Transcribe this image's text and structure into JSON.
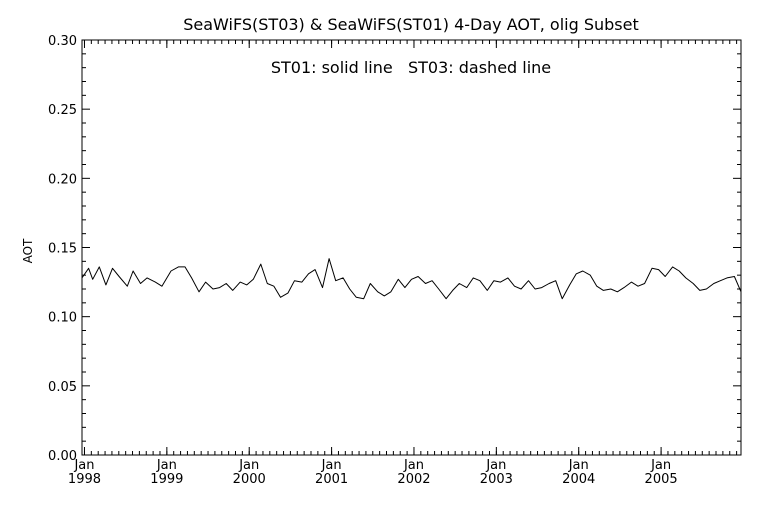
{
  "chart_data": {
    "type": "line",
    "title": "SeaWiFS(ST03) & SeaWiFS(ST01) 4-Day AOT, olig Subset",
    "annotation": "ST01: solid line   ST03: dashed line",
    "ylabel": "AOT",
    "xlabel": "",
    "ylim": [
      0.0,
      0.3
    ],
    "xlim": [
      1997.97,
      2005.97
    ],
    "yticks": [
      "0.00",
      "0.05",
      "0.10",
      "0.15",
      "0.20",
      "0.25",
      "0.30"
    ],
    "xticks": [
      {
        "month": "Jan",
        "year": "1998",
        "x": 1998
      },
      {
        "month": "Jan",
        "year": "1999",
        "x": 1999
      },
      {
        "month": "Jan",
        "year": "2000",
        "x": 2000
      },
      {
        "month": "Jan",
        "year": "2001",
        "x": 2001
      },
      {
        "month": "Jan",
        "year": "2002",
        "x": 2002
      },
      {
        "month": "Jan",
        "year": "2003",
        "x": 2003
      },
      {
        "month": "Jan",
        "year": "2004",
        "x": 2004
      },
      {
        "month": "Jan",
        "year": "2005",
        "x": 2005
      }
    ],
    "grid": false,
    "series": [
      {
        "name": "ST01",
        "style": "solid",
        "x": [
          1997.97,
          1998.05,
          1998.1,
          1998.18,
          1998.26,
          1998.34,
          1998.42,
          1998.52,
          1998.59,
          1998.68,
          1998.76,
          1998.86,
          1998.94,
          1999.05,
          1999.14,
          1999.22,
          1999.3,
          1999.39,
          1999.47,
          1999.56,
          1999.64,
          1999.72,
          1999.8,
          1999.89,
          1999.97,
          2000.05,
          2000.14,
          2000.22,
          2000.3,
          2000.38,
          2000.47,
          2000.55,
          2000.64,
          2000.72,
          2000.8,
          2000.89,
          2000.97,
          2001.05,
          2001.14,
          2001.22,
          2001.3,
          2001.39,
          2001.47,
          2001.56,
          2001.64,
          2001.72,
          2001.81,
          2001.89,
          2001.97,
          2002.05,
          2002.14,
          2002.22,
          2002.3,
          2002.39,
          2002.47,
          2002.55,
          2002.64,
          2002.72,
          2002.8,
          2002.89,
          2002.97,
          2003.05,
          2003.14,
          2003.22,
          2003.3,
          2003.39,
          2003.47,
          2003.55,
          2003.64,
          2003.72,
          2003.8,
          2003.89,
          2003.97,
          2004.05,
          2004.14,
          2004.22,
          2004.3,
          2004.39,
          2004.47,
          2004.55,
          2004.64,
          2004.72,
          2004.8,
          2004.89,
          2004.97,
          2005.05,
          2005.14,
          2005.22,
          2005.3,
          2005.39,
          2005.47,
          2005.55,
          2005.64,
          2005.72,
          2005.8,
          2005.89,
          2005.97
        ],
        "values": [
          0.128,
          0.135,
          0.127,
          0.136,
          0.123,
          0.135,
          0.129,
          0.122,
          0.133,
          0.124,
          0.128,
          0.125,
          0.122,
          0.133,
          0.136,
          0.136,
          0.128,
          0.118,
          0.125,
          0.12,
          0.121,
          0.124,
          0.119,
          0.125,
          0.123,
          0.127,
          0.138,
          0.124,
          0.122,
          0.114,
          0.117,
          0.126,
          0.125,
          0.131,
          0.134,
          0.121,
          0.142,
          0.126,
          0.128,
          0.12,
          0.114,
          0.113,
          0.124,
          0.118,
          0.115,
          0.118,
          0.127,
          0.121,
          0.127,
          0.129,
          0.124,
          0.126,
          0.12,
          0.113,
          0.119,
          0.124,
          0.121,
          0.128,
          0.126,
          0.119,
          0.126,
          0.125,
          0.128,
          0.122,
          0.12,
          0.126,
          0.12,
          0.121,
          0.124,
          0.126,
          0.113,
          0.123,
          0.131,
          0.133,
          0.13,
          0.122,
          0.119,
          0.12,
          0.118,
          0.121,
          0.125,
          0.122,
          0.124,
          0.135,
          0.134,
          0.129,
          0.136,
          0.133,
          0.128,
          0.124,
          0.119,
          0.12,
          0.124,
          0.126,
          0.128,
          0.129,
          0.118
        ]
      }
    ]
  }
}
